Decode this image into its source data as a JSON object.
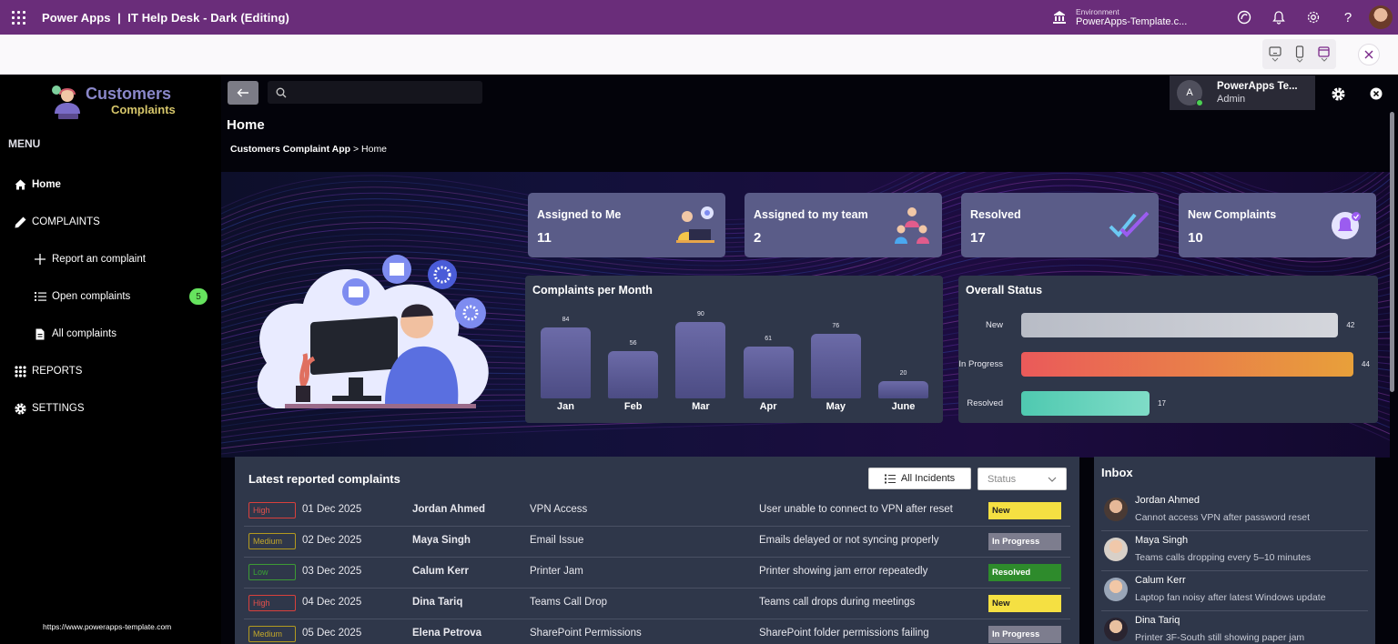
{
  "topbar": {
    "app_title": "Power Apps  |  IT Help Desk - Dark (Editing)",
    "environment_label": "Environment",
    "environment_value": "PowerApps-Template.c..."
  },
  "sidebar": {
    "logo_line1": "Customers",
    "logo_line2": "Complaints",
    "menu_label": "MENU",
    "items": [
      {
        "label": "Home",
        "icon": "home-icon"
      },
      {
        "label": "COMPLAINTS",
        "icon": "pencil-icon"
      },
      {
        "label": "Report an complaint",
        "icon": "plus-icon"
      },
      {
        "label": "Open complaints",
        "icon": "list-icon",
        "badge": "5"
      },
      {
        "label": "All complaints",
        "icon": "document-icon"
      },
      {
        "label": "REPORTS",
        "icon": "grid-icon"
      },
      {
        "label": "SETTINGS",
        "icon": "gear-icon"
      }
    ],
    "footer_url": "https://www.powerapps-template.com"
  },
  "header": {
    "page_title": "Home",
    "breadcrumb_app": "Customers Complaint App",
    "breadcrumb_sep": " > ",
    "breadcrumb_page": "Home",
    "search_placeholder": "",
    "user_initial": "A",
    "user_name": "PowerApps Te...",
    "user_role": "Admin"
  },
  "kpis": [
    {
      "title": "Assigned to Me",
      "value": "11"
    },
    {
      "title": "Assigned to my team",
      "value": "2"
    },
    {
      "title": "Resolved",
      "value": "17"
    },
    {
      "title": "New Complaints",
      "value": "10"
    }
  ],
  "chart_data": [
    {
      "type": "bar",
      "title": "Complaints per Month",
      "categories": [
        "Jan",
        "Feb",
        "Mar",
        "Apr",
        "May",
        "June"
      ],
      "values": [
        84,
        56,
        90,
        61,
        76,
        20
      ],
      "ylim": [
        0,
        90
      ]
    },
    {
      "type": "bar",
      "orientation": "horizontal",
      "title": "Overall Status",
      "categories": [
        "New",
        "In Progress",
        "Resolved"
      ],
      "values": [
        42,
        44,
        17
      ],
      "colors": [
        "#c5c8cf",
        "#ea6b52",
        "#5fcfb4"
      ]
    }
  ],
  "complaints": {
    "title": "Latest reported complaints",
    "filter_button": "All Incidents",
    "status_placeholder": "Status",
    "rows": [
      {
        "priority": "High",
        "date": "01 Dec 2025",
        "name": "Jordan Ahmed",
        "category": "VPN Access",
        "description": "User unable to connect to VPN after reset",
        "status": "New"
      },
      {
        "priority": "Medium",
        "date": "02 Dec 2025",
        "name": "Maya Singh",
        "category": "Email Issue",
        "description": "Emails delayed or not syncing properly",
        "status": "In Progress"
      },
      {
        "priority": "Low",
        "date": "03 Dec 2025",
        "name": "Calum Kerr",
        "category": "Printer Jam",
        "description": "Printer showing jam error repeatedly",
        "status": "Resolved"
      },
      {
        "priority": "High",
        "date": "04 Dec 2025",
        "name": "Dina Tariq",
        "category": "Teams Call Drop",
        "description": "Teams call drops during meetings",
        "status": "New"
      },
      {
        "priority": "Medium",
        "date": "05 Dec 2025",
        "name": "Elena Petrova",
        "category": "SharePoint Permissions",
        "description": "SharePoint folder permissions failing",
        "status": "In Progress"
      }
    ]
  },
  "inbox": {
    "title": "Inbox",
    "messages": [
      {
        "name": "Jordan Ahmed",
        "text": "Cannot access VPN after password reset"
      },
      {
        "name": "Maya Singh",
        "text": "Teams calls dropping every 5–10 minutes"
      },
      {
        "name": "Calum Kerr",
        "text": "Laptop fan noisy after latest Windows update"
      },
      {
        "name": "Dina Tariq",
        "text": "Printer 3F-South still showing paper jam"
      }
    ]
  },
  "colors": {
    "topbar": "#6a2d7a",
    "kpi_card": "#5a5c88",
    "panel": "#2f374a",
    "status_new": "#f5e042",
    "status_in_progress": "#7d7d8e",
    "status_resolved": "#2e8b2c",
    "badge": "#66e35e"
  }
}
